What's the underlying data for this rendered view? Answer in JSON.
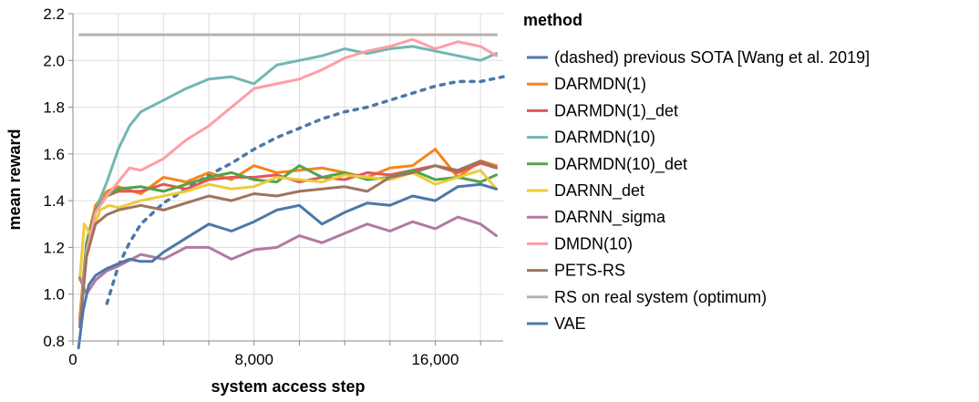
{
  "chart_data": {
    "type": "line",
    "xlabel": "system access step",
    "ylabel": "mean reward",
    "xlim": [
      0,
      19000
    ],
    "ylim": [
      0.8,
      2.2
    ],
    "x_ticks": [
      0,
      8000,
      16000
    ],
    "x_tick_labels": [
      "0",
      "8,000",
      "16,000"
    ],
    "y_ticks": [
      0.8,
      1.0,
      1.2,
      1.4,
      1.6,
      1.8,
      2.0,
      2.2
    ],
    "y_tick_labels": [
      "0.8",
      "1.0",
      "1.2",
      "1.4",
      "1.6",
      "1.8",
      "2.0",
      "2.2"
    ],
    "grid": "on",
    "legend": {
      "title": "method",
      "placement": "right"
    },
    "series": [
      {
        "name": "(dashed) previous SOTA [Wang et al. 2019]",
        "color": "#4c78a8",
        "dashed": true,
        "x": [
          1500,
          2000,
          2500,
          3000,
          4000,
          5000,
          6000,
          7000,
          8000,
          9000,
          10000,
          11000,
          12000,
          13000,
          14000,
          15000,
          16000,
          17000,
          18000,
          19000
        ],
        "y": [
          0.96,
          1.12,
          1.22,
          1.3,
          1.39,
          1.45,
          1.51,
          1.56,
          1.62,
          1.67,
          1.71,
          1.75,
          1.78,
          1.8,
          1.83,
          1.86,
          1.89,
          1.91,
          1.91,
          1.93
        ]
      },
      {
        "name": "DARMDN(1)",
        "color": "#f58518",
        "x": [
          300,
          600,
          1000,
          1500,
          2000,
          3000,
          4000,
          5000,
          6000,
          7000,
          8000,
          9000,
          10000,
          11000,
          12000,
          13000,
          14000,
          15000,
          16000,
          17000,
          18000,
          18700
        ],
        "y": [
          0.9,
          1.22,
          1.38,
          1.44,
          1.46,
          1.43,
          1.5,
          1.48,
          1.52,
          1.49,
          1.55,
          1.52,
          1.53,
          1.54,
          1.52,
          1.5,
          1.54,
          1.55,
          1.62,
          1.5,
          1.57,
          1.55
        ]
      },
      {
        "name": "DARMDN(1)_det",
        "color": "#e45756",
        "x": [
          300,
          600,
          1000,
          1500,
          2000,
          3000,
          4000,
          5000,
          6000,
          7000,
          8000,
          9000,
          10000,
          11000,
          12000,
          13000,
          14000,
          15000,
          16000,
          17000,
          18000,
          18700
        ],
        "y": [
          0.88,
          1.2,
          1.36,
          1.42,
          1.44,
          1.44,
          1.47,
          1.45,
          1.49,
          1.5,
          1.5,
          1.51,
          1.48,
          1.5,
          1.49,
          1.52,
          1.51,
          1.53,
          1.55,
          1.52,
          1.56,
          1.54
        ]
      },
      {
        "name": "DARMDN(10)",
        "color": "#72b7b2",
        "x": [
          300,
          600,
          1000,
          1500,
          2000,
          2500,
          3000,
          4000,
          5000,
          6000,
          7000,
          8000,
          9000,
          10000,
          11000,
          12000,
          13000,
          14000,
          15000,
          16000,
          17000,
          18000,
          18700
        ],
        "y": [
          0.88,
          1.2,
          1.36,
          1.48,
          1.62,
          1.72,
          1.78,
          1.83,
          1.88,
          1.92,
          1.93,
          1.9,
          1.98,
          2.0,
          2.02,
          2.05,
          2.03,
          2.05,
          2.06,
          2.04,
          2.02,
          2.0,
          2.03
        ]
      },
      {
        "name": "DARMDN(10)_det",
        "color": "#54a24b",
        "x": [
          300,
          600,
          1000,
          1500,
          2000,
          3000,
          4000,
          5000,
          6000,
          7000,
          8000,
          9000,
          10000,
          11000,
          12000,
          13000,
          14000,
          15000,
          16000,
          17000,
          18000,
          18700
        ],
        "y": [
          0.88,
          1.22,
          1.36,
          1.42,
          1.45,
          1.46,
          1.44,
          1.47,
          1.5,
          1.52,
          1.49,
          1.48,
          1.55,
          1.5,
          1.52,
          1.49,
          1.5,
          1.53,
          1.49,
          1.5,
          1.48,
          1.51
        ]
      },
      {
        "name": "DARNN_det",
        "color": "#eeca3b",
        "x": [
          300,
          500,
          800,
          1200,
          1600,
          2000,
          3000,
          4000,
          5000,
          6000,
          7000,
          8000,
          9000,
          10000,
          11000,
          12000,
          13000,
          14000,
          15000,
          16000,
          17000,
          18000,
          18700
        ],
        "y": [
          1.06,
          1.3,
          1.25,
          1.36,
          1.38,
          1.37,
          1.4,
          1.42,
          1.44,
          1.47,
          1.45,
          1.46,
          1.5,
          1.49,
          1.48,
          1.51,
          1.5,
          1.49,
          1.52,
          1.47,
          1.5,
          1.53,
          1.45
        ]
      },
      {
        "name": "DARNN_sigma",
        "color": "#b279a2",
        "x": [
          300,
          600,
          1000,
          1500,
          2000,
          3000,
          4000,
          5000,
          6000,
          7000,
          8000,
          9000,
          10000,
          11000,
          12000,
          13000,
          14000,
          15000,
          16000,
          17000,
          18000,
          18700
        ],
        "y": [
          1.07,
          1.0,
          1.06,
          1.1,
          1.12,
          1.17,
          1.15,
          1.2,
          1.2,
          1.15,
          1.19,
          1.2,
          1.25,
          1.22,
          1.26,
          1.3,
          1.27,
          1.31,
          1.28,
          1.33,
          1.3,
          1.25
        ]
      },
      {
        "name": "DMDN(10)",
        "color": "#ff9da6",
        "x": [
          300,
          600,
          1000,
          1500,
          2000,
          2500,
          3000,
          4000,
          5000,
          6000,
          7000,
          8000,
          9000,
          10000,
          11000,
          12000,
          13000,
          14000,
          15000,
          16000,
          17000,
          18000,
          18700
        ],
        "y": [
          0.88,
          1.18,
          1.35,
          1.42,
          1.48,
          1.54,
          1.53,
          1.58,
          1.66,
          1.72,
          1.8,
          1.88,
          1.9,
          1.92,
          1.96,
          2.01,
          2.04,
          2.06,
          2.09,
          2.05,
          2.08,
          2.06,
          2.02
        ]
      },
      {
        "name": "PETS-RS",
        "color": "#9d755d",
        "x": [
          300,
          600,
          1000,
          1500,
          2000,
          3000,
          4000,
          5000,
          6000,
          7000,
          8000,
          9000,
          10000,
          11000,
          12000,
          13000,
          14000,
          15000,
          16000,
          17000,
          18000,
          18700
        ],
        "y": [
          0.86,
          1.16,
          1.3,
          1.34,
          1.36,
          1.38,
          1.36,
          1.39,
          1.42,
          1.4,
          1.43,
          1.42,
          1.44,
          1.45,
          1.46,
          1.44,
          1.5,
          1.52,
          1.55,
          1.53,
          1.57,
          1.54
        ]
      },
      {
        "name": "RS on real system (optimum)",
        "color": "#bab0ac",
        "x": [
          300,
          18700
        ],
        "y": [
          2.11,
          2.11
        ]
      },
      {
        "name": "VAE",
        "color": "#4c78a8",
        "x": [
          250,
          450,
          700,
          1000,
          1500,
          2000,
          2500,
          3000,
          3500,
          4000,
          5000,
          6000,
          7000,
          8000,
          9000,
          10000,
          11000,
          12000,
          13000,
          14000,
          15000,
          16000,
          17000,
          18000,
          18700
        ],
        "y": [
          0.77,
          0.93,
          1.04,
          1.08,
          1.11,
          1.13,
          1.15,
          1.14,
          1.14,
          1.18,
          1.24,
          1.3,
          1.27,
          1.31,
          1.36,
          1.38,
          1.3,
          1.35,
          1.39,
          1.38,
          1.42,
          1.4,
          1.46,
          1.47,
          1.45
        ]
      }
    ]
  }
}
